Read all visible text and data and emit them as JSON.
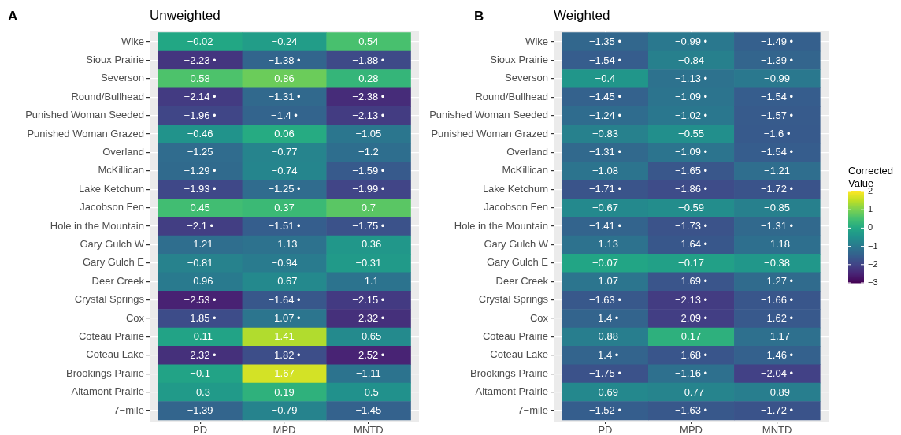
{
  "chart_data": [
    {
      "type": "heatmap",
      "title": "Unweighted",
      "annotations": [
        "A"
      ],
      "categories": [
        "PD",
        "MPD",
        "MNTD"
      ],
      "y_categories": [
        "Wike",
        "Sioux Prairie",
        "Severson",
        "Round/Bullhead",
        "Punished Woman Seeded",
        "Punished Woman Grazed",
        "Overland",
        "McKillican",
        "Lake Ketchum",
        "Jacobson Fen",
        "Hole in the Mountain",
        "Gary Gulch W",
        "Gary Gulch E",
        "Deer Creek",
        "Crystal Springs",
        "Cox",
        "Coteau Prairie",
        "Coteau Lake",
        "Brookings Prairie",
        "Altamont Prairie",
        "7−mile"
      ],
      "cells": [
        [
          -0.02,
          -0.24,
          0.54
        ],
        [
          -2.23,
          -1.38,
          -1.88
        ],
        [
          0.58,
          0.86,
          0.28
        ],
        [
          -2.14,
          -1.31,
          -2.38
        ],
        [
          -1.96,
          -1.4,
          -2.13
        ],
        [
          -0.46,
          0.06,
          -1.05
        ],
        [
          -1.25,
          -0.77,
          -1.2
        ],
        [
          -1.29,
          -0.74,
          -1.59
        ],
        [
          -1.93,
          -1.25,
          -1.99
        ],
        [
          0.45,
          0.37,
          0.7
        ],
        [
          -2.1,
          -1.51,
          -1.75
        ],
        [
          -1.21,
          -1.13,
          -0.36
        ],
        [
          -0.81,
          -0.94,
          -0.31
        ],
        [
          -0.96,
          -0.67,
          -1.1
        ],
        [
          -2.53,
          -1.64,
          -2.15
        ],
        [
          -1.85,
          -1.07,
          -2.32
        ],
        [
          -0.11,
          1.41,
          -0.65
        ],
        [
          -2.32,
          -1.82,
          -2.52
        ],
        [
          -0.1,
          1.67,
          -1.11
        ],
        [
          -0.3,
          0.19,
          -0.5
        ],
        [
          -1.39,
          -0.79,
          -1.45
        ]
      ],
      "cell_labels": [
        [
          "−0.02",
          "−0.24",
          "0.54"
        ],
        [
          "−2.23 •",
          "−1.38 •",
          "−1.88 •"
        ],
        [
          "0.58",
          "0.86",
          "0.28"
        ],
        [
          "−2.14 •",
          "−1.31 •",
          "−2.38 •"
        ],
        [
          "−1.96 •",
          "−1.4 •",
          "−2.13 •"
        ],
        [
          "−0.46",
          "0.06",
          "−1.05"
        ],
        [
          "−1.25",
          "−0.77",
          "−1.2"
        ],
        [
          "−1.29 •",
          "−0.74",
          "−1.59 •"
        ],
        [
          "−1.93 •",
          "−1.25 •",
          "−1.99 •"
        ],
        [
          "0.45",
          "0.37",
          "0.7"
        ],
        [
          "−2.1 •",
          "−1.51 •",
          "−1.75 •"
        ],
        [
          "−1.21",
          "−1.13",
          "−0.36"
        ],
        [
          "−0.81",
          "−0.94",
          "−0.31"
        ],
        [
          "−0.96",
          "−0.67",
          "−1.1"
        ],
        [
          "−2.53 •",
          "−1.64 •",
          "−2.15 •"
        ],
        [
          "−1.85 •",
          "−1.07 •",
          "−2.32 •"
        ],
        [
          "−0.11",
          "1.41",
          "−0.65"
        ],
        [
          "−2.32 •",
          "−1.82 •",
          "−2.52 •"
        ],
        [
          "−0.1",
          "1.67",
          "−1.11"
        ],
        [
          "−0.3",
          "0.19",
          "−0.5"
        ],
        [
          "−1.39",
          "−0.79",
          "−1.45"
        ]
      ],
      "grid": true
    },
    {
      "type": "heatmap",
      "title": "Weighted",
      "annotations": [
        "B"
      ],
      "categories": [
        "PD",
        "MPD",
        "MNTD"
      ],
      "y_categories": [
        "Wike",
        "Sioux Prairie",
        "Severson",
        "Round/Bullhead",
        "Punished Woman Seeded",
        "Punished Woman Grazed",
        "Overland",
        "McKillican",
        "Lake Ketchum",
        "Jacobson Fen",
        "Hole in the Mountain",
        "Gary Gulch W",
        "Gary Gulch E",
        "Deer Creek",
        "Crystal Springs",
        "Cox",
        "Coteau Prairie",
        "Coteau Lake",
        "Brookings Prairie",
        "Altamont Prairie",
        "7−mile"
      ],
      "cells": [
        [
          -1.35,
          -0.99,
          -1.49
        ],
        [
          -1.54,
          -0.84,
          -1.39
        ],
        [
          -0.4,
          -1.13,
          -0.99
        ],
        [
          -1.45,
          -1.09,
          -1.54
        ],
        [
          -1.24,
          -1.02,
          -1.57
        ],
        [
          -0.83,
          -0.55,
          -1.6
        ],
        [
          -1.31,
          -1.09,
          -1.54
        ],
        [
          -1.08,
          -1.65,
          -1.21
        ],
        [
          -1.71,
          -1.86,
          -1.72
        ],
        [
          -0.67,
          -0.59,
          -0.85
        ],
        [
          -1.41,
          -1.73,
          -1.31
        ],
        [
          -1.13,
          -1.64,
          -1.18
        ],
        [
          -0.07,
          -0.17,
          -0.38
        ],
        [
          -1.07,
          -1.69,
          -1.27
        ],
        [
          -1.63,
          -2.13,
          -1.66
        ],
        [
          -1.4,
          -2.09,
          -1.62
        ],
        [
          -0.88,
          0.17,
          -1.17
        ],
        [
          -1.4,
          -1.68,
          -1.46
        ],
        [
          -1.75,
          -1.16,
          -2.04
        ],
        [
          -0.69,
          -0.77,
          -0.89
        ],
        [
          -1.52,
          -1.63,
          -1.72
        ]
      ],
      "cell_labels": [
        [
          "−1.35 •",
          "−0.99 •",
          "−1.49 •"
        ],
        [
          "−1.54 •",
          "−0.84",
          "−1.39 •"
        ],
        [
          "−0.4",
          "−1.13 •",
          "−0.99"
        ],
        [
          "−1.45 •",
          "−1.09 •",
          "−1.54 •"
        ],
        [
          "−1.24 •",
          "−1.02 •",
          "−1.57 •"
        ],
        [
          "−0.83",
          "−0.55",
          "−1.6 •"
        ],
        [
          "−1.31 •",
          "−1.09 •",
          "−1.54 •"
        ],
        [
          "−1.08",
          "−1.65 •",
          "−1.21"
        ],
        [
          "−1.71 •",
          "−1.86 •",
          "−1.72 •"
        ],
        [
          "−0.67",
          "−0.59",
          "−0.85"
        ],
        [
          "−1.41 •",
          "−1.73 •",
          "−1.31 •"
        ],
        [
          "−1.13",
          "−1.64 •",
          "−1.18"
        ],
        [
          "−0.07",
          "−0.17",
          "−0.38"
        ],
        [
          "−1.07",
          "−1.69 •",
          "−1.27 •"
        ],
        [
          "−1.63 •",
          "−2.13 •",
          "−1.66 •"
        ],
        [
          "−1.4 •",
          "−2.09 •",
          "−1.62 •"
        ],
        [
          "−0.88",
          "0.17",
          "−1.17"
        ],
        [
          "−1.4 •",
          "−1.68 •",
          "−1.46 •"
        ],
        [
          "−1.75 •",
          "−1.16 •",
          "−2.04 •"
        ],
        [
          "−0.69",
          "−0.77",
          "−0.89"
        ],
        [
          "−1.52 •",
          "−1.63 •",
          "−1.72 •"
        ]
      ],
      "clim": [
        -3,
        2
      ],
      "clabel": "Corrected\nValue",
      "cticks": [
        2,
        1,
        0,
        {
          "value": -1,
          "label": "−1"
        },
        {
          "value": -2,
          "label": "−2"
        },
        {
          "value": -3,
          "label": "−3"
        }
      ],
      "grid": true
    }
  ]
}
